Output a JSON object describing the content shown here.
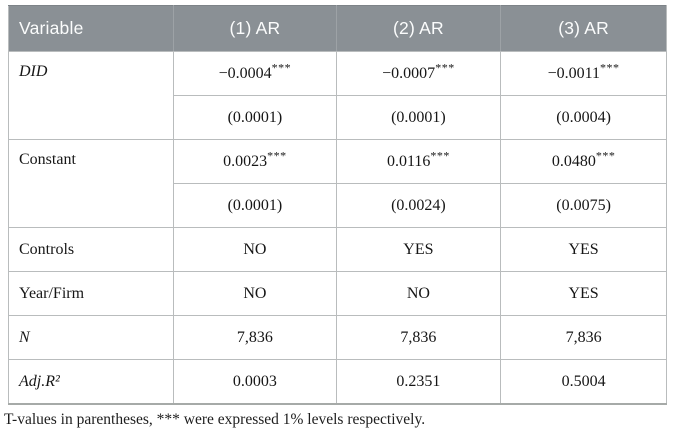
{
  "colors": {
    "header_bg": "#8a9095",
    "header_text": "#fbfcfc",
    "border": "#b9bcbd",
    "body_text": "#161616"
  },
  "table": {
    "header": {
      "cells": [
        "Variable",
        "(1) AR",
        "(2) AR",
        "(3) AR"
      ]
    },
    "rows": [
      {
        "label": "DID",
        "values": [
          {
            "v": "−0.0004",
            "stars": "***"
          },
          {
            "v": "−0.0007",
            "stars": "***"
          },
          {
            "v": "−0.0011",
            "stars": "***"
          }
        ]
      },
      {
        "values": [
          {
            "v": "(0.0001)"
          },
          {
            "v": "(0.0001)"
          },
          {
            "v": "(0.0004)"
          }
        ]
      },
      {
        "label": "Constant",
        "values": [
          {
            "v": "0.0023",
            "stars": "***"
          },
          {
            "v": "0.0116",
            "stars": "***"
          },
          {
            "v": "0.0480",
            "stars": "***"
          }
        ]
      },
      {
        "values": [
          {
            "v": "(0.0001)"
          },
          {
            "v": "(0.0024)"
          },
          {
            "v": "(0.0075)"
          }
        ]
      },
      {
        "label": "Controls",
        "values": [
          {
            "v": "NO"
          },
          {
            "v": "YES"
          },
          {
            "v": "YES"
          }
        ]
      },
      {
        "label": "Year/Firm",
        "values": [
          {
            "v": "NO"
          },
          {
            "v": "NO"
          },
          {
            "v": "YES"
          }
        ]
      },
      {
        "label": "N",
        "values": [
          {
            "v": "7,836"
          },
          {
            "v": "7,836"
          },
          {
            "v": "7,836"
          }
        ]
      },
      {
        "label": "Adj.R²",
        "values": [
          {
            "v": "0.0003"
          },
          {
            "v": "0.2351"
          },
          {
            "v": "0.5004"
          }
        ]
      }
    ],
    "footnote": "T-values in parentheses, *** were expressed 1% levels respectively."
  }
}
